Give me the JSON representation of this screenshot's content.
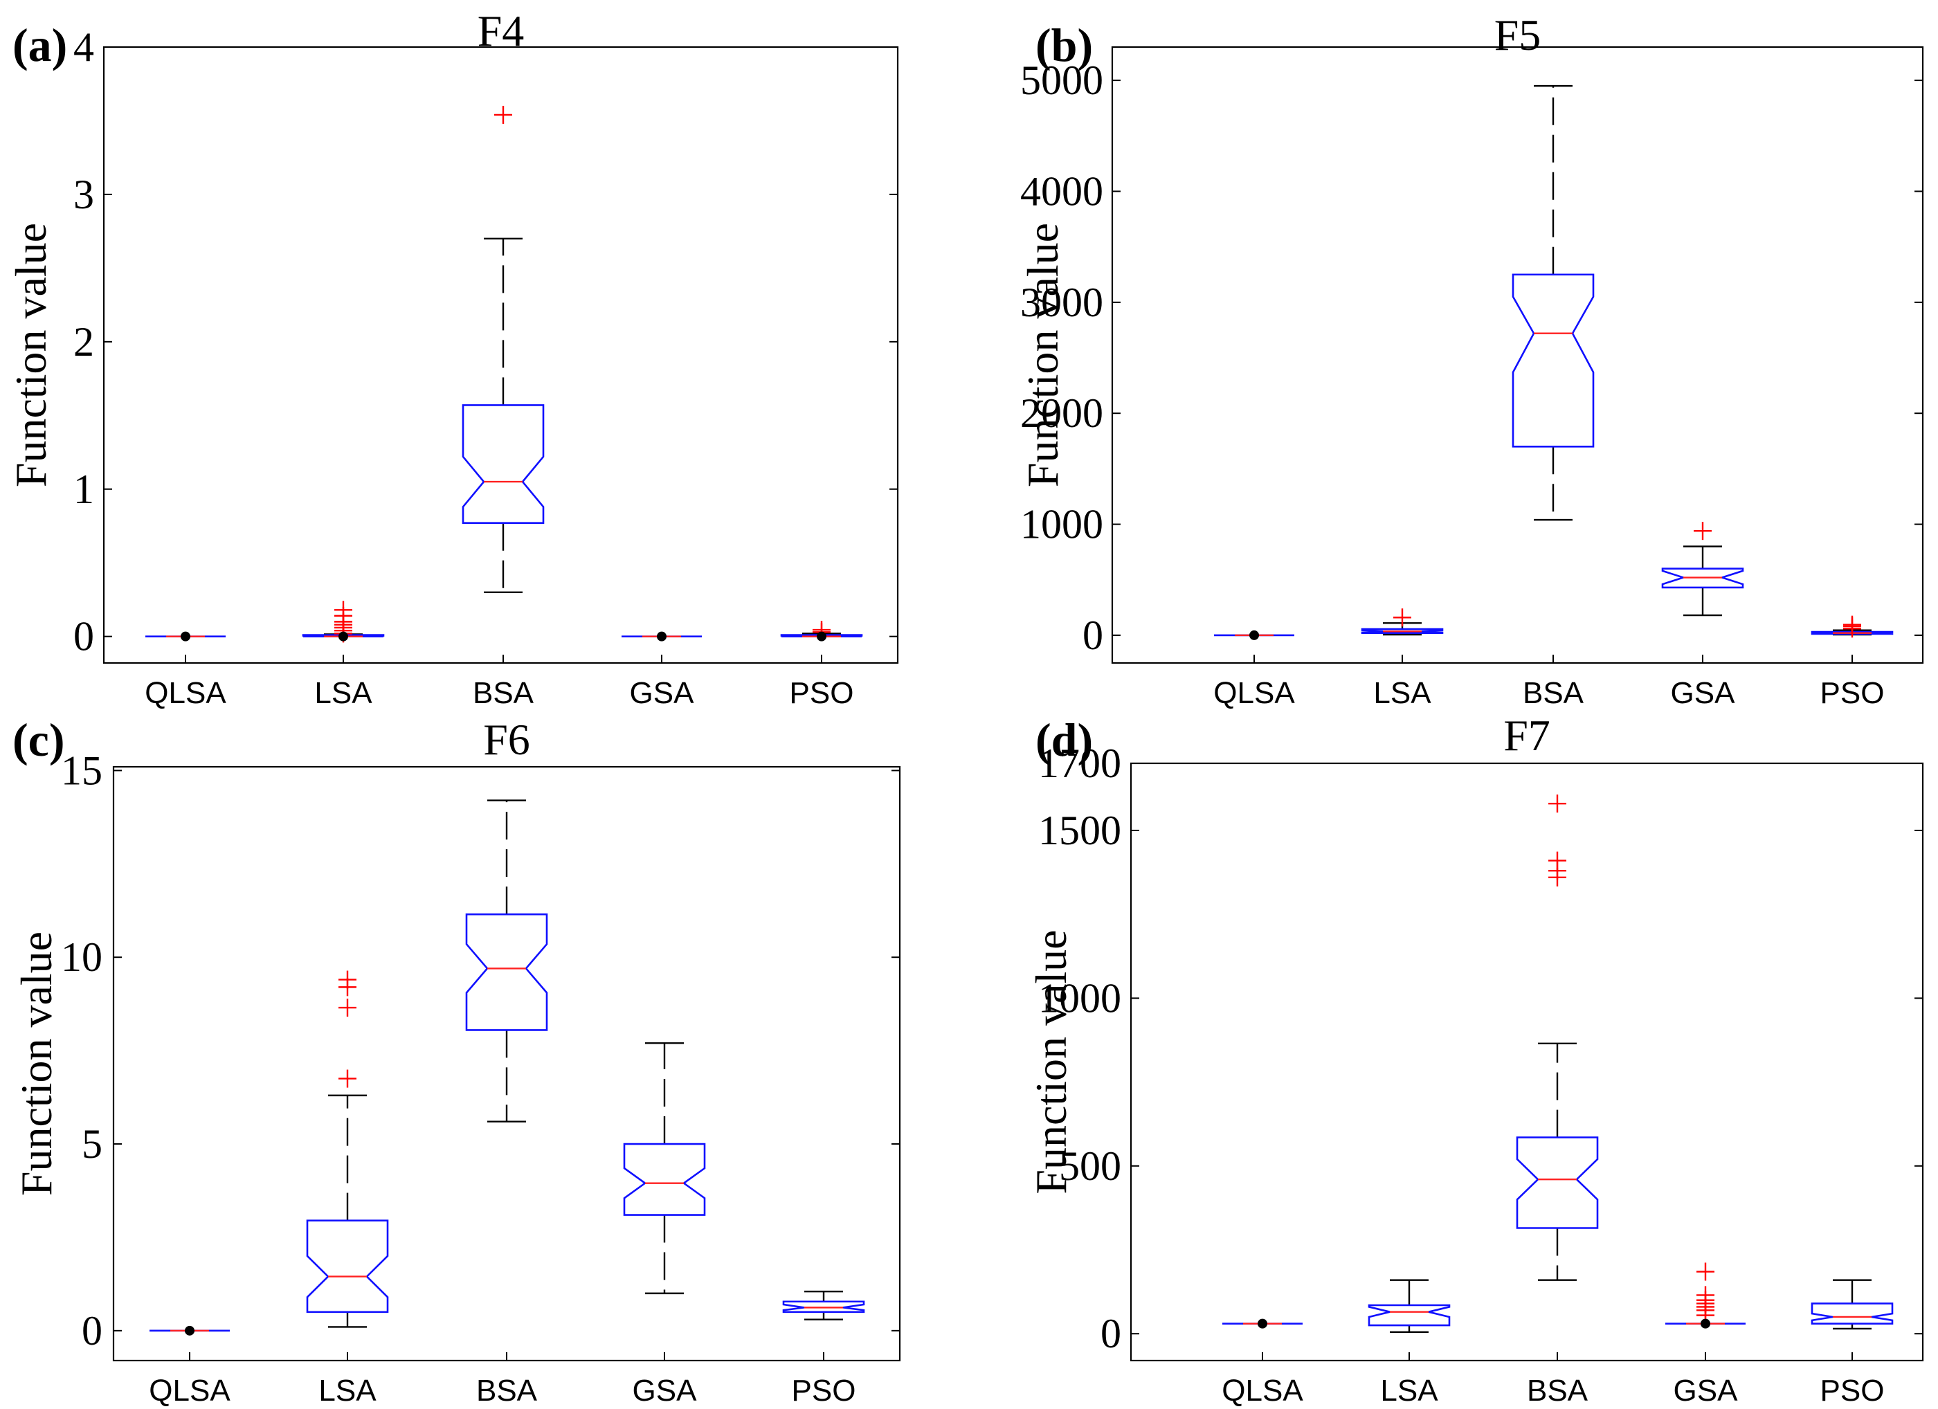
{
  "chart_data": [
    {
      "panel_label": "(a)",
      "type": "box",
      "title": "F4",
      "ylabel": "Function value",
      "xlabel": "",
      "ylim": [
        -0.18,
        4.0
      ],
      "yticks": [
        0,
        1,
        2,
        3,
        4
      ],
      "ytick_labels": [
        "0",
        "1",
        "2",
        "3",
        "4"
      ],
      "categories": [
        "QLSA",
        "LSA",
        "BSA",
        "GSA",
        "PSO"
      ],
      "boxes": [
        {
          "category": "QLSA",
          "min": 0,
          "q1": 0,
          "median": 0,
          "q3": 0,
          "max": 0,
          "notch_low": 0,
          "notch_high": 0,
          "outliers": [],
          "marked_value": 0
        },
        {
          "category": "LSA",
          "min": 0,
          "q1": 0,
          "median": 0,
          "q3": 0.01,
          "max": 0.015,
          "notch_low": 0,
          "notch_high": 0.005,
          "outliers": [
            0.02,
            0.04,
            0.06,
            0.08,
            0.1,
            0.14,
            0.18
          ],
          "marked_value": 0
        },
        {
          "category": "BSA",
          "min": 0.3,
          "q1": 0.77,
          "median": 1.05,
          "q3": 1.57,
          "max": 2.7,
          "notch_low": 0.88,
          "notch_high": 1.22,
          "outliers": [
            3.54
          ],
          "marked_value": null
        },
        {
          "category": "GSA",
          "min": 0,
          "q1": 0,
          "median": 0,
          "q3": 0,
          "max": 0,
          "notch_low": 0,
          "notch_high": 0,
          "outliers": [],
          "marked_value": 0
        },
        {
          "category": "PSO",
          "min": 0,
          "q1": 0,
          "median": 0,
          "q3": 0.01,
          "max": 0.02,
          "notch_low": 0,
          "notch_high": 0.005,
          "outliers": [
            0.03,
            0.045
          ],
          "marked_value": 0
        }
      ]
    },
    {
      "panel_label": "(b)",
      "type": "box",
      "title": "F5",
      "ylabel": "Function value",
      "xlabel": "",
      "ylim": [
        -250,
        5300
      ],
      "yticks": [
        0,
        1000,
        2000,
        3000,
        4000,
        5000
      ],
      "ytick_labels": [
        "0",
        "1000",
        "2000",
        "3000",
        "4000",
        "5000"
      ],
      "categories": [
        "QLSA",
        "LSA",
        "BSA",
        "GSA",
        "PSO"
      ],
      "boxes": [
        {
          "category": "QLSA",
          "min": 0,
          "q1": 0,
          "median": 0,
          "q3": 0,
          "max": 0,
          "notch_low": 0,
          "notch_high": 0,
          "outliers": [],
          "marked_value": 0
        },
        {
          "category": "LSA",
          "min": 5,
          "q1": 20,
          "median": 35,
          "q3": 55,
          "max": 110,
          "notch_low": 25,
          "notch_high": 45,
          "outliers": [
            160
          ],
          "marked_value": null
        },
        {
          "category": "BSA",
          "min": 1040,
          "q1": 1700,
          "median": 2720,
          "q3": 3250,
          "max": 4950,
          "notch_low": 2370,
          "notch_high": 3050,
          "outliers": [],
          "marked_value": null
        },
        {
          "category": "GSA",
          "min": 180,
          "q1": 430,
          "median": 520,
          "q3": 600,
          "max": 800,
          "notch_low": 460,
          "notch_high": 580,
          "outliers": [
            940
          ],
          "marked_value": null
        },
        {
          "category": "PSO",
          "min": 5,
          "q1": 12,
          "median": 20,
          "q3": 30,
          "max": 45,
          "notch_low": 15,
          "notch_high": 25,
          "outliers": [
            60,
            80,
            95
          ],
          "marked_value": null
        }
      ]
    },
    {
      "panel_label": "(c)",
      "type": "box",
      "title": "F6",
      "ylabel": "Function value",
      "xlabel": "",
      "ylim": [
        -0.8,
        15.1
      ],
      "yticks": [
        0,
        5,
        10,
        15
      ],
      "ytick_labels": [
        "0",
        "5",
        "10",
        "15"
      ],
      "categories": [
        "QLSA",
        "LSA",
        "BSA",
        "GSA",
        "PSO"
      ],
      "boxes": [
        {
          "category": "QLSA",
          "min": 0,
          "q1": 0,
          "median": 0,
          "q3": 0,
          "max": 0,
          "notch_low": 0,
          "notch_high": 0,
          "outliers": [],
          "marked_value": 0
        },
        {
          "category": "LSA",
          "min": 0.1,
          "q1": 0.5,
          "median": 1.45,
          "q3": 2.95,
          "max": 6.3,
          "notch_low": 0.9,
          "notch_high": 2.0,
          "outliers": [
            6.75,
            8.65,
            9.2,
            9.4
          ],
          "marked_value": null
        },
        {
          "category": "BSA",
          "min": 5.6,
          "q1": 8.05,
          "median": 9.7,
          "q3": 11.15,
          "max": 14.2,
          "notch_low": 9.05,
          "notch_high": 10.35,
          "outliers": [],
          "marked_value": null
        },
        {
          "category": "GSA",
          "min": 1.0,
          "q1": 3.1,
          "median": 3.95,
          "q3": 5.0,
          "max": 7.7,
          "notch_low": 3.55,
          "notch_high": 4.35,
          "outliers": [],
          "marked_value": null
        },
        {
          "category": "PSO",
          "min": 0.3,
          "q1": 0.5,
          "median": 0.62,
          "q3": 0.78,
          "max": 1.05,
          "notch_low": 0.55,
          "notch_high": 0.7,
          "outliers": [],
          "marked_value": null
        }
      ]
    },
    {
      "panel_label": "(d)",
      "type": "box",
      "title": "F7",
      "ylabel": "Function value",
      "xlabel": "",
      "ylim": [
        -80,
        1700
      ],
      "yticks": [
        0,
        500,
        1000,
        1500,
        1700
      ],
      "ytick_labels": [
        "0",
        "500",
        "1000",
        "1500",
        "1700"
      ],
      "categories": [
        "QLSA",
        "LSA",
        "BSA",
        "GSA",
        "PSO"
      ],
      "boxes": [
        {
          "category": "QLSA",
          "min": 30,
          "q1": 30,
          "median": 30,
          "q3": 30,
          "max": 30,
          "notch_low": 30,
          "notch_high": 30,
          "outliers": [],
          "marked_value": 30
        },
        {
          "category": "LSA",
          "min": 5,
          "q1": 25,
          "median": 65,
          "q3": 85,
          "max": 160,
          "notch_low": 50,
          "notch_high": 80,
          "outliers": [],
          "marked_value": null
        },
        {
          "category": "BSA",
          "min": 160,
          "q1": 315,
          "median": 460,
          "q3": 585,
          "max": 865,
          "notch_low": 400,
          "notch_high": 520,
          "outliers": [
            1360,
            1380,
            1410,
            1580
          ],
          "marked_value": null
        },
        {
          "category": "GSA",
          "min": 30,
          "q1": 30,
          "median": 30,
          "q3": 30,
          "max": 30,
          "notch_low": 30,
          "notch_high": 30,
          "outliers": [
            55,
            70,
            80,
            90,
            100,
            115,
            185
          ],
          "marked_value": 30
        },
        {
          "category": "PSO",
          "min": 15,
          "q1": 30,
          "median": 50,
          "q3": 90,
          "max": 160,
          "notch_low": 40,
          "notch_high": 60,
          "outliers": [],
          "marked_value": null
        }
      ]
    }
  ]
}
